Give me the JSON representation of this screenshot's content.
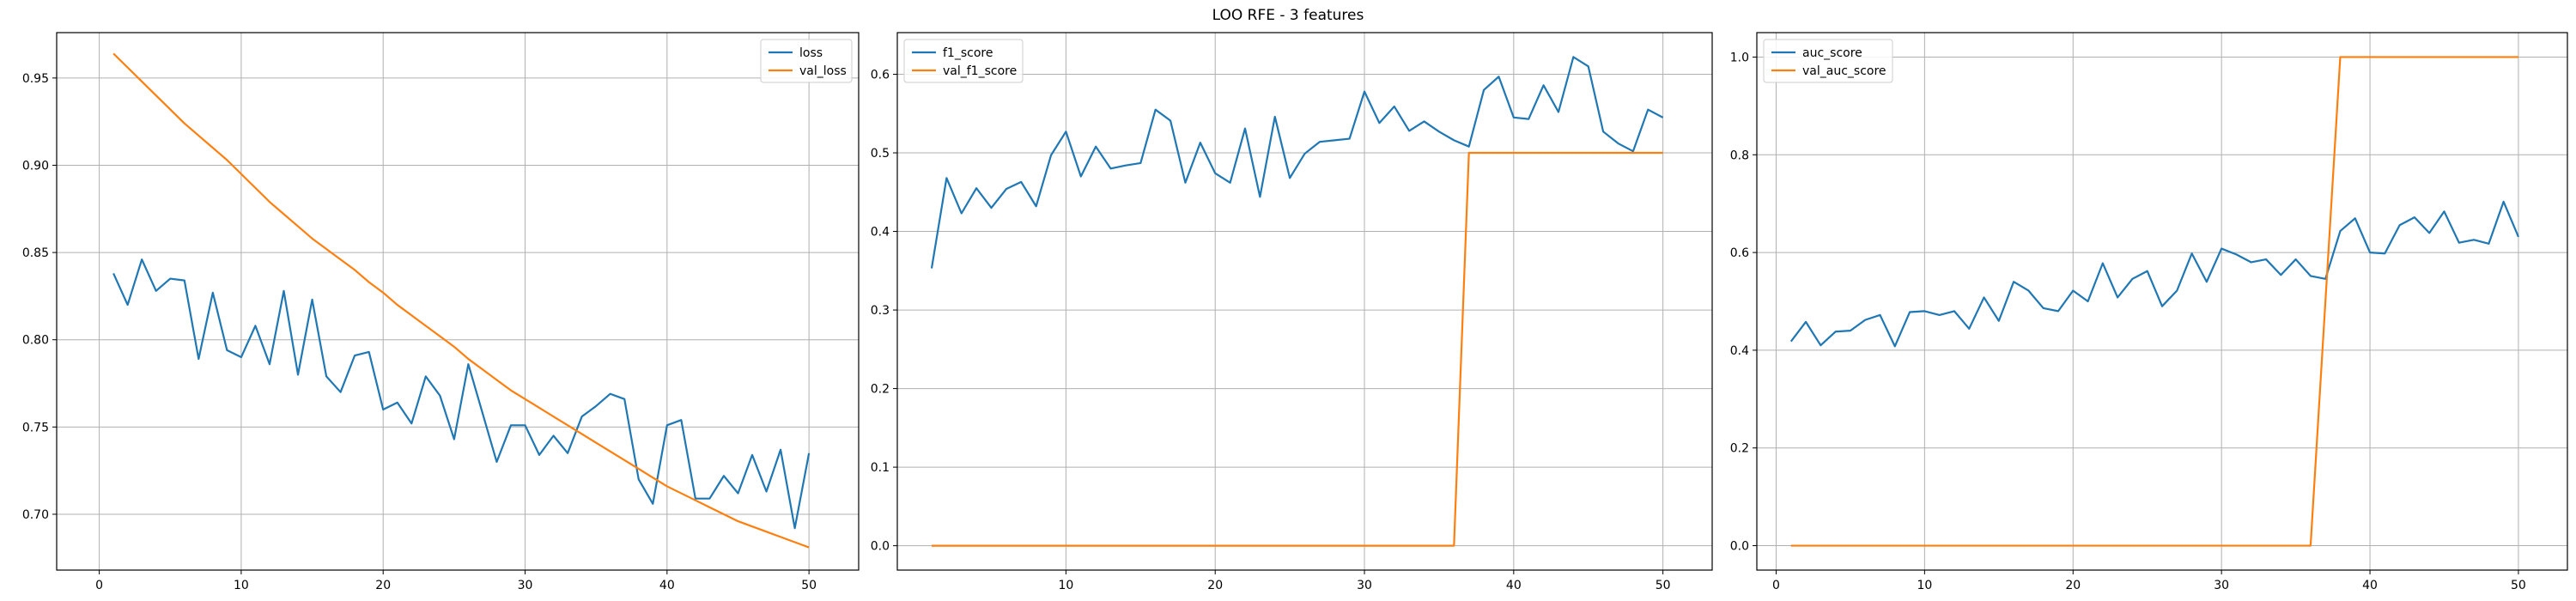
{
  "figure": {
    "title": "LOO RFE - 3 features"
  },
  "chart_data": [
    {
      "type": "line",
      "x": [
        1,
        2,
        3,
        4,
        5,
        6,
        7,
        8,
        9,
        10,
        11,
        12,
        13,
        14,
        15,
        16,
        17,
        18,
        19,
        20,
        21,
        22,
        23,
        24,
        25,
        26,
        27,
        28,
        29,
        30,
        31,
        32,
        33,
        34,
        35,
        36,
        37,
        38,
        39,
        40,
        41,
        42,
        43,
        44,
        45,
        46,
        47,
        48,
        49,
        50
      ],
      "series": [
        {
          "name": "loss",
          "color": "#1f77b4",
          "values": [
            0.838,
            0.82,
            0.846,
            0.828,
            0.835,
            0.834,
            0.789,
            0.827,
            0.794,
            0.79,
            0.808,
            0.786,
            0.828,
            0.78,
            0.823,
            0.779,
            0.77,
            0.791,
            0.793,
            0.76,
            0.764,
            0.752,
            0.779,
            0.768,
            0.743,
            0.786,
            0.758,
            0.73,
            0.751,
            0.751,
            0.734,
            0.745,
            0.735,
            0.756,
            0.762,
            0.769,
            0.766,
            0.72,
            0.706,
            0.751,
            0.754,
            0.709,
            0.709,
            0.722,
            0.712,
            0.734,
            0.713,
            0.737,
            0.692,
            0.735
          ]
        },
        {
          "name": "val_loss",
          "color": "#ff7f0e",
          "values": [
            0.964,
            0.956,
            0.948,
            0.94,
            0.932,
            0.924,
            0.917,
            0.91,
            0.903,
            0.895,
            0.887,
            0.879,
            0.872,
            0.865,
            0.858,
            0.852,
            0.846,
            0.84,
            0.833,
            0.827,
            0.82,
            0.814,
            0.808,
            0.802,
            0.796,
            0.789,
            0.783,
            0.777,
            0.771,
            0.766,
            0.761,
            0.756,
            0.751,
            0.746,
            0.741,
            0.736,
            0.731,
            0.726,
            0.721,
            0.716,
            0.712,
            0.708,
            0.704,
            0.7,
            0.696,
            0.693,
            0.69,
            0.687,
            0.684,
            0.681
          ]
        }
      ],
      "xlim": [
        -3,
        53.5
      ],
      "ylim": [
        0.668,
        0.976
      ],
      "xticks": [
        0,
        10,
        20,
        30,
        40,
        50
      ],
      "xtick_labels": [
        "0",
        "10",
        "20",
        "30",
        "40",
        "50"
      ],
      "yticks": [
        0.7,
        0.75,
        0.8,
        0.85,
        0.9,
        0.95
      ],
      "ytick_labels": [
        "0.70",
        "0.75",
        "0.80",
        "0.85",
        "0.90",
        "0.95"
      ],
      "grid": true,
      "legend": "top-right"
    },
    {
      "type": "line",
      "x": [
        1,
        2,
        3,
        4,
        5,
        6,
        7,
        8,
        9,
        10,
        11,
        12,
        13,
        14,
        15,
        16,
        17,
        18,
        19,
        20,
        21,
        22,
        23,
        24,
        25,
        26,
        27,
        28,
        29,
        30,
        31,
        32,
        33,
        34,
        35,
        36,
        37,
        38,
        39,
        40,
        41,
        42,
        43,
        44,
        45,
        46,
        47,
        48,
        49,
        50
      ],
      "series": [
        {
          "name": "f1_score",
          "color": "#1f77b4",
          "values": [
            0.353,
            0.468,
            0.423,
            0.455,
            0.43,
            0.454,
            0.463,
            0.432,
            0.497,
            0.527,
            0.47,
            0.508,
            0.48,
            0.484,
            0.487,
            0.555,
            0.541,
            0.462,
            0.513,
            0.474,
            0.462,
            0.531,
            0.444,
            0.546,
            0.468,
            0.499,
            0.514,
            0.516,
            0.518,
            0.578,
            0.538,
            0.559,
            0.528,
            0.54,
            0.527,
            0.516,
            0.508,
            0.58,
            0.597,
            0.545,
            0.543,
            0.586,
            0.552,
            0.622,
            0.61,
            0.527,
            0.512,
            0.502,
            0.555,
            0.545
          ]
        },
        {
          "name": "val_f1_score",
          "color": "#ff7f0e",
          "values": [
            0,
            0,
            0,
            0,
            0,
            0,
            0,
            0,
            0,
            0,
            0,
            0,
            0,
            0,
            0,
            0,
            0,
            0,
            0,
            0,
            0,
            0,
            0,
            0,
            0,
            0,
            0,
            0,
            0,
            0,
            0,
            0,
            0,
            0,
            0,
            0,
            0.5,
            0.5,
            0.5,
            0.5,
            0.5,
            0.5,
            0.5,
            0.5,
            0.5,
            0.5,
            0.5,
            0.5,
            0.5,
            0.5
          ]
        }
      ],
      "xlim": [
        -1.3,
        53.3
      ],
      "ylim": [
        -0.031,
        0.653
      ],
      "xticks": [
        10,
        20,
        30,
        40,
        50
      ],
      "xtick_labels": [
        "10",
        "20",
        "30",
        "40",
        "50"
      ],
      "yticks": [
        0.0,
        0.1,
        0.2,
        0.3,
        0.4,
        0.5,
        0.6
      ],
      "ytick_labels": [
        "0.0",
        "0.1",
        "0.2",
        "0.3",
        "0.4",
        "0.5",
        "0.6"
      ],
      "grid": true,
      "legend": "top-left"
    },
    {
      "type": "line",
      "x": [
        1,
        2,
        3,
        4,
        5,
        6,
        7,
        8,
        9,
        10,
        11,
        12,
        13,
        14,
        15,
        16,
        17,
        18,
        19,
        20,
        21,
        22,
        23,
        24,
        25,
        26,
        27,
        28,
        29,
        30,
        31,
        32,
        33,
        34,
        35,
        36,
        37,
        38,
        39,
        40,
        41,
        42,
        43,
        44,
        45,
        46,
        47,
        48,
        49,
        50
      ],
      "series": [
        {
          "name": "auc_score",
          "color": "#1f77b4",
          "values": [
            0.418,
            0.458,
            0.41,
            0.438,
            0.44,
            0.462,
            0.472,
            0.408,
            0.478,
            0.48,
            0.472,
            0.48,
            0.444,
            0.508,
            0.46,
            0.54,
            0.522,
            0.486,
            0.48,
            0.522,
            0.5,
            0.578,
            0.508,
            0.546,
            0.562,
            0.49,
            0.522,
            0.598,
            0.54,
            0.608,
            0.596,
            0.58,
            0.586,
            0.554,
            0.586,
            0.552,
            0.546,
            0.644,
            0.67,
            0.6,
            0.598,
            0.656,
            0.672,
            0.64,
            0.684,
            0.62,
            0.626,
            0.618,
            0.704,
            0.632
          ]
        },
        {
          "name": "val_auc_score",
          "color": "#ff7f0e",
          "values": [
            0,
            0,
            0,
            0,
            0,
            0,
            0,
            0,
            0,
            0,
            0,
            0,
            0,
            0,
            0,
            0,
            0,
            0,
            0,
            0,
            0,
            0,
            0,
            0,
            0,
            0,
            0,
            0,
            0,
            0,
            0,
            0,
            0,
            0,
            0,
            0,
            0.5,
            1,
            1,
            1,
            1,
            1,
            1,
            1,
            1,
            1,
            1,
            1,
            1,
            1
          ]
        }
      ],
      "xlim": [
        -1.3,
        53.3
      ],
      "ylim": [
        -0.05,
        1.05
      ],
      "xticks": [
        0,
        10,
        20,
        30,
        40,
        50
      ],
      "xtick_labels": [
        "0",
        "10",
        "20",
        "30",
        "40",
        "50"
      ],
      "yticks": [
        0.0,
        0.2,
        0.4,
        0.6,
        0.8,
        1.0
      ],
      "ytick_labels": [
        "0.0",
        "0.2",
        "0.4",
        "0.6",
        "0.8",
        "1.0"
      ],
      "grid": true,
      "legend": "top-left"
    }
  ]
}
